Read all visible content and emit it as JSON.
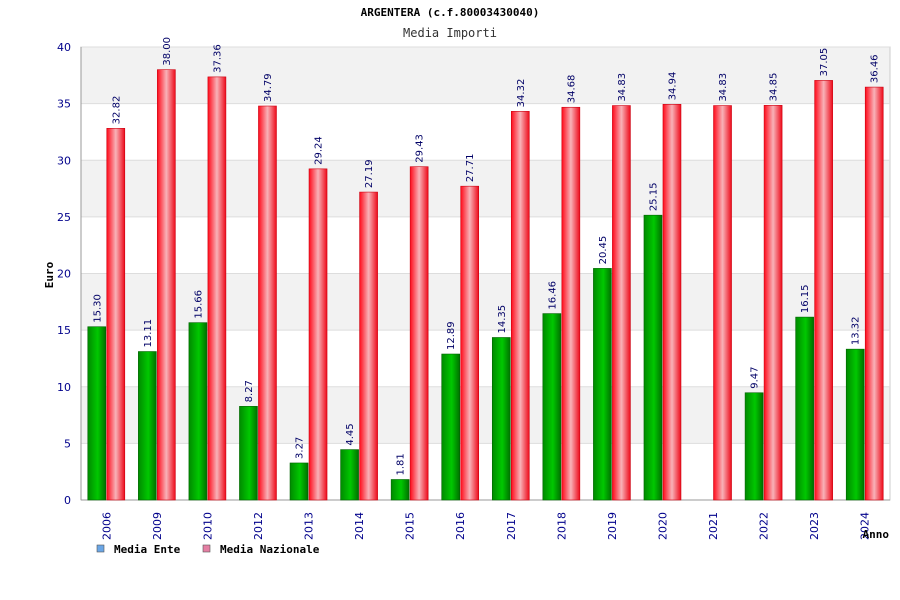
{
  "chart_data": {
    "type": "bar",
    "title": "ARGENTERA (c.f.80003430040)",
    "subtitle": "Media Importi",
    "ylabel": "Euro",
    "xlabel": "Anno",
    "ylim": [
      0,
      40
    ],
    "yticks": [
      0,
      5,
      10,
      15,
      20,
      25,
      30,
      35,
      40
    ],
    "grid": true,
    "legend_position": "bottom-left",
    "categories": [
      "2006",
      "2009",
      "2010",
      "2012",
      "2013",
      "2014",
      "2015",
      "2016",
      "2017",
      "2018",
      "2019",
      "2020",
      "2021",
      "2022",
      "2023",
      "2024"
    ],
    "series": [
      {
        "name": "Media Ente",
        "color": "#00b000",
        "legend_color": "#6aa6e6",
        "values": [
          15.3,
          13.11,
          15.66,
          8.27,
          3.27,
          4.45,
          1.81,
          12.89,
          14.35,
          16.46,
          20.45,
          25.15,
          null,
          9.47,
          16.15,
          13.32
        ],
        "labels": [
          "15.30",
          "13.11",
          "15.66",
          "8.27",
          "3.27",
          "4.45",
          "1.81",
          "12.89",
          "14.35",
          "16.46",
          "20.45",
          "25.15",
          "",
          "9.47",
          "16.15",
          "13.32"
        ]
      },
      {
        "name": "Media Nazionale",
        "color": "#ee1c2c",
        "legend_color": "#e57fa3",
        "values": [
          32.82,
          38.0,
          37.36,
          34.79,
          29.24,
          27.19,
          29.43,
          27.71,
          34.32,
          34.68,
          34.83,
          34.94,
          34.83,
          34.85,
          37.05,
          36.46
        ],
        "labels": [
          "32.82",
          "38.00",
          "37.36",
          "34.79",
          "29.24",
          "27.19",
          "29.43",
          "27.71",
          "34.32",
          "34.68",
          "34.83",
          "34.94",
          "34.83",
          "34.85",
          "37.05",
          "36.46"
        ]
      }
    ]
  }
}
